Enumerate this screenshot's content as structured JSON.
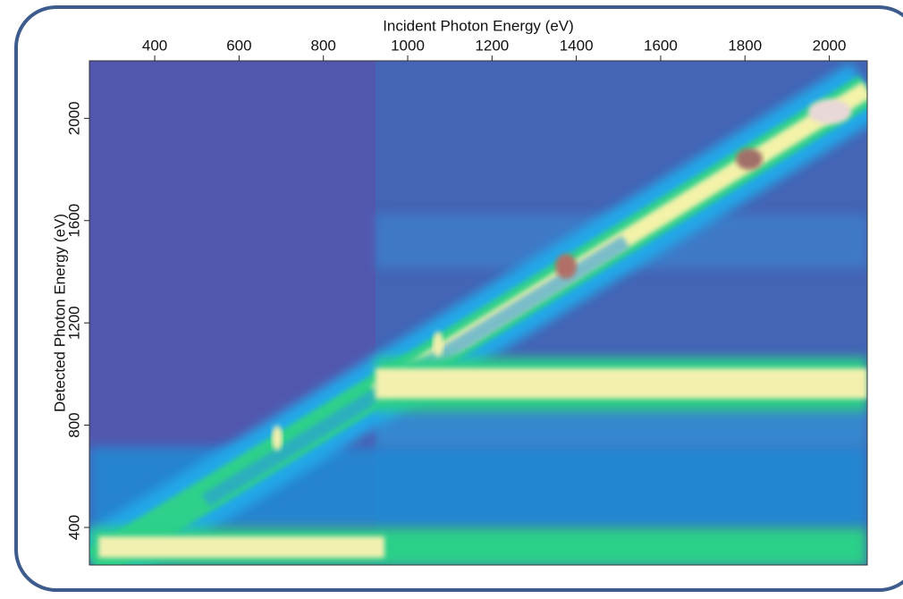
{
  "chart_data": {
    "type": "heatmap",
    "x_label": "Incident Photon Energy (eV)",
    "y_label": "Detected Photon Energy (eV)",
    "xlim": [
      245,
      2090
    ],
    "ylim": [
      253,
      2225
    ],
    "xticks": [
      400,
      600,
      800,
      1000,
      1200,
      1400,
      1600,
      1800,
      2000
    ],
    "yticks": [
      400,
      800,
      1200,
      1600,
      2000
    ]
  }
}
